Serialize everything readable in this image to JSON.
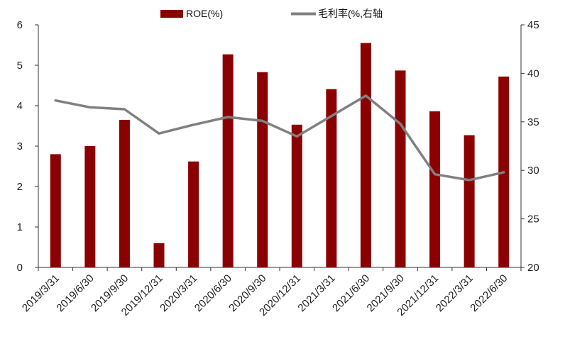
{
  "chart_data": {
    "type": "bar",
    "categories": [
      "2019/3/31",
      "2019/6/30",
      "2019/9/30",
      "2019/12/31",
      "2020/3/31",
      "2020/6/30",
      "2020/9/30",
      "2020/12/31",
      "2021/3/31",
      "2021/6/30",
      "2021/9/30",
      "2021/12/31",
      "2022/3/31",
      "2022/6/30"
    ],
    "series": [
      {
        "name": "ROE(%)",
        "type": "bar",
        "axis": "left",
        "color": "#8b0000",
        "values": [
          2.8,
          3.0,
          3.65,
          0.6,
          2.62,
          5.27,
          4.83,
          3.53,
          4.41,
          5.55,
          4.87,
          3.86,
          3.27,
          4.72
        ]
      },
      {
        "name": "毛利率(%,右轴",
        "type": "line",
        "axis": "right",
        "color": "#808080",
        "values": [
          37.2,
          36.5,
          36.3,
          33.8,
          34.7,
          35.5,
          35.1,
          33.5,
          35.6,
          37.7,
          34.8,
          29.6,
          29.0,
          29.8
        ]
      }
    ],
    "ylim_left": [
      0,
      6
    ],
    "yticks_left": [
      "0",
      "1",
      "2",
      "3",
      "4",
      "5",
      "6"
    ],
    "ylim_right": [
      20,
      45
    ],
    "yticks_right": [
      "20",
      "25",
      "30",
      "35",
      "40",
      "45"
    ],
    "legend_position": "top-center",
    "grid": false,
    "title": "",
    "xlabel": "",
    "ylabel": ""
  }
}
